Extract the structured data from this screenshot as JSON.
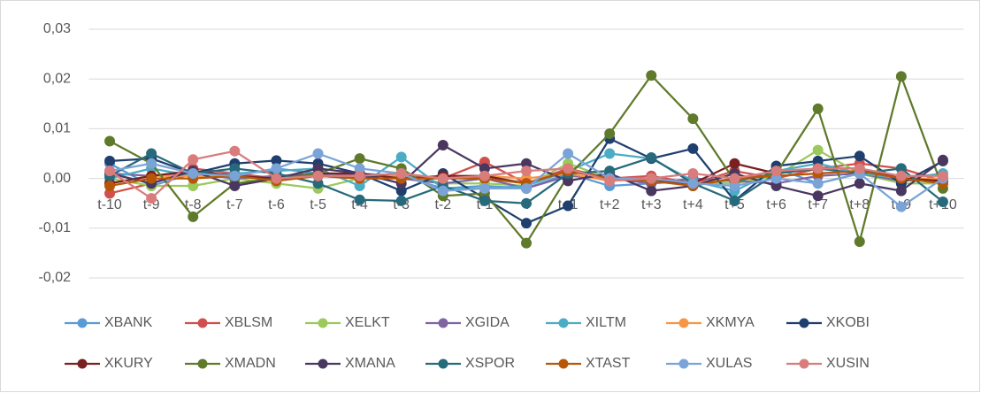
{
  "chart_data": {
    "type": "line",
    "categories": [
      "t-10",
      "t-9",
      "t-8",
      "t-7",
      "t-6",
      "t-5",
      "t-4",
      "t-3",
      "t-2",
      "t-1",
      "t",
      "t+1",
      "t+2",
      "t+3",
      "t+4",
      "t+5",
      "t+6",
      "t+7",
      "t+8",
      "t+9",
      "t+10"
    ],
    "ylim": [
      -0.02,
      0.03
    ],
    "yticks": [
      {
        "value": -0.02,
        "label": "-0,02"
      },
      {
        "value": -0.01,
        "label": "-0,01"
      },
      {
        "value": 0,
        "label": "0,00"
      },
      {
        "value": 0.01,
        "label": "0,01"
      },
      {
        "value": 0.02,
        "label": "0,02"
      },
      {
        "value": 0.03,
        "label": "0,03"
      }
    ],
    "grid": true,
    "legend": "bottom",
    "series": [
      {
        "name": "XBANK",
        "color": "#5b9bd5",
        "values": [
          0.003,
          -0.0015,
          0.001,
          0.0005,
          0.002,
          0.001,
          0.001,
          0.0005,
          -0.002,
          -0.0015,
          -0.002,
          0.001,
          -0.0015,
          -0.001,
          -0.0005,
          -0.001,
          0.002,
          -0.001,
          0.001,
          -0.0005,
          0
        ]
      },
      {
        "name": "XBLSM",
        "color": "#d0504d",
        "values": [
          -0.003,
          -0.001,
          0.002,
          0.001,
          0,
          0.0005,
          0.0005,
          0.001,
          0,
          0.0033,
          -0.001,
          0.002,
          0,
          0.0005,
          -0.001,
          0.0015,
          0,
          0.002,
          0.003,
          0.002,
          -0.0005
        ]
      },
      {
        "name": "XELKT",
        "color": "#9bc95b",
        "values": [
          0,
          -0.0015,
          -0.0015,
          0,
          -0.001,
          -0.002,
          0,
          0.001,
          -0.001,
          -0.001,
          -0.0015,
          0.003,
          0,
          -0.0005,
          -0.001,
          -0.001,
          0.0005,
          0.0057,
          0.001,
          -0.001,
          -0.001
        ]
      },
      {
        "name": "XGIDA",
        "color": "#8064a2",
        "values": [
          0.001,
          0.0005,
          0.001,
          0,
          0.0005,
          0.001,
          0.0005,
          0,
          -0.001,
          0,
          -0.002,
          0.0005,
          0,
          -0.001,
          0,
          -0.0005,
          -0.001,
          0.0005,
          0.001,
          -0.0005,
          0
        ]
      },
      {
        "name": "XILTM",
        "color": "#4bacc6",
        "values": [
          0,
          0.002,
          0.0005,
          0.001,
          0.0015,
          0.002,
          -0.0015,
          0.0043,
          -0.002,
          -0.002,
          -0.0015,
          0.0015,
          0.005,
          0.004,
          -0.0005,
          -0.0025,
          0.0015,
          0.003,
          0.001,
          0,
          0.001
        ]
      },
      {
        "name": "XKMYA",
        "color": "#f79646",
        "values": [
          -0.001,
          0.0005,
          0.0005,
          0.0005,
          0,
          0.0005,
          0,
          0.0005,
          0,
          0.0005,
          0,
          0.001,
          -0.0005,
          0,
          -0.001,
          0,
          0.0005,
          0.001,
          0.0015,
          0,
          0
        ]
      },
      {
        "name": "XKOBI",
        "color": "#1f3f6e",
        "values": [
          0.0035,
          0.004,
          0.001,
          0.003,
          0.0036,
          0.003,
          0.001,
          -0.0025,
          0.001,
          -0.004,
          -0.009,
          -0.0055,
          0.008,
          0.004,
          0.006,
          -0.0045,
          0.0025,
          0.0035,
          0.0045,
          -0.001,
          0.0035
        ]
      },
      {
        "name": "XKURY",
        "color": "#7b2020",
        "values": [
          -0.001,
          0.0005,
          0.0015,
          0.0005,
          0,
          0.001,
          0.001,
          0,
          0.0005,
          0.0005,
          -0.001,
          0.0015,
          0,
          -0.0005,
          -0.001,
          0.003,
          0.001,
          0.002,
          0.002,
          0,
          -0.0005
        ]
      },
      {
        "name": "XMADN",
        "color": "#5f7a2a",
        "values": [
          0.0075,
          0.003,
          -0.0077,
          -0.001,
          0,
          0.001,
          0.004,
          0.002,
          -0.0035,
          -0.003,
          -0.013,
          0.0005,
          0.009,
          0.0207,
          0.012,
          -0.0005,
          0.001,
          0.014,
          -0.0127,
          0.0205,
          -0.002
        ]
      },
      {
        "name": "XMANA",
        "color": "#4a3760",
        "values": [
          0.001,
          -0.001,
          0.0015,
          -0.0015,
          0,
          0.002,
          0.001,
          -0.001,
          0.0067,
          0.002,
          0.003,
          -0.0005,
          0.001,
          -0.0025,
          -0.0015,
          0.001,
          -0.0015,
          -0.0035,
          -0.001,
          -0.0025,
          0.0037
        ]
      },
      {
        "name": "XSPOR",
        "color": "#276a7c",
        "values": [
          0.0005,
          0.005,
          0.001,
          0.002,
          0.001,
          -0.001,
          -0.0043,
          -0.0045,
          -0.0015,
          -0.0045,
          -0.005,
          0.001,
          0.0015,
          0.0042,
          -0.001,
          -0.0045,
          0.001,
          0.002,
          0.001,
          0.002,
          -0.0047
        ]
      },
      {
        "name": "XTAST",
        "color": "#b65708",
        "values": [
          -0.0015,
          0,
          0,
          0.0005,
          -0.0005,
          0.0005,
          0,
          0,
          0,
          0,
          -0.001,
          0.0015,
          0,
          -0.0005,
          -0.0015,
          0,
          0.0005,
          0.001,
          0.0015,
          0,
          -0.001
        ]
      },
      {
        "name": "XULAS",
        "color": "#7aa3d8",
        "values": [
          0.0015,
          0.003,
          0.001,
          0.0005,
          0.002,
          0.005,
          0.002,
          0.001,
          -0.0025,
          -0.002,
          -0.002,
          0.005,
          0,
          0,
          -0.001,
          -0.0015,
          0,
          -0.001,
          0.001,
          -0.0057,
          0
        ]
      },
      {
        "name": "XUSIN",
        "color": "#d87c7c",
        "values": [
          0.0015,
          -0.004,
          0.0038,
          0.0055,
          0,
          0.0005,
          0.0005,
          0.001,
          0,
          0.0005,
          0.0015,
          0.002,
          -0.0005,
          0,
          0.001,
          0,
          0.0015,
          0.002,
          0.002,
          0.0005,
          0.0005
        ]
      }
    ]
  }
}
